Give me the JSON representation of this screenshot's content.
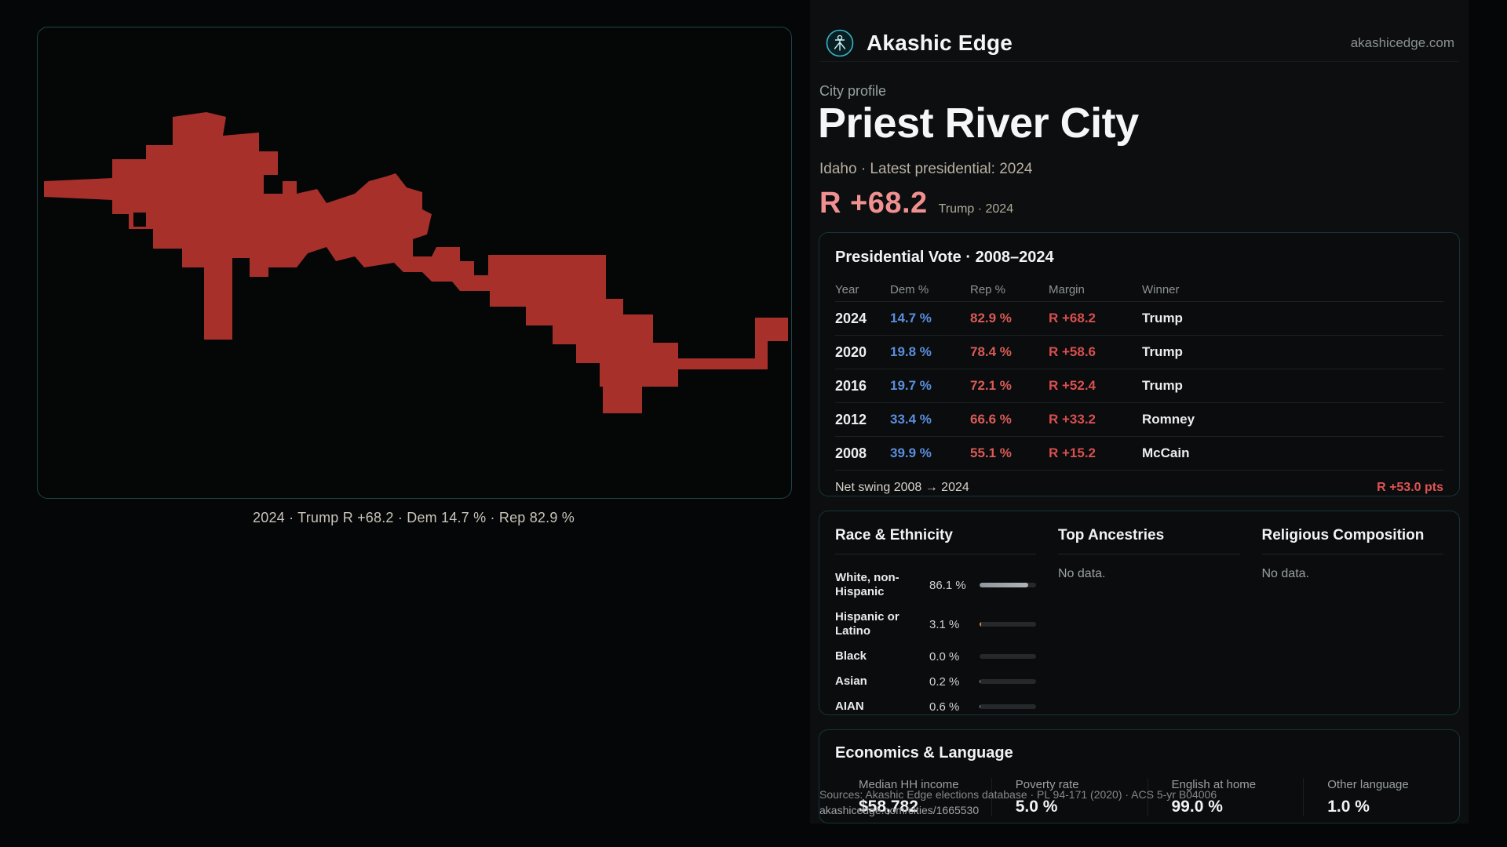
{
  "brand": {
    "name": "Akashic Edge",
    "domain": "akashicedge.com",
    "logo_color": "#3ab5c5"
  },
  "map": {
    "caption": "2024 · Trump R +68.2 · Dem 14.7 % · Rep 82.9 %",
    "fill_color": "#a8302b"
  },
  "profile": {
    "eyebrow": "City profile",
    "title": "Priest River City",
    "subtitle": "Idaho · Latest presidential: 2024",
    "headline_margin": "R +68.2",
    "headline_note": "Trump · 2024"
  },
  "presidential": {
    "title": "Presidential Vote · 2008–2024",
    "columns": [
      "Year",
      "Dem %",
      "Rep %",
      "Margin",
      "Winner"
    ],
    "rows": [
      {
        "year": "2024",
        "dem": "14.7 %",
        "rep": "82.9 %",
        "margin": "R +68.2",
        "winner": "Trump"
      },
      {
        "year": "2020",
        "dem": "19.8 %",
        "rep": "78.4 %",
        "margin": "R +58.6",
        "winner": "Trump"
      },
      {
        "year": "2016",
        "dem": "19.7 %",
        "rep": "72.1 %",
        "margin": "R +52.4",
        "winner": "Trump"
      },
      {
        "year": "2012",
        "dem": "33.4 %",
        "rep": "66.6 %",
        "margin": "R +33.2",
        "winner": "Romney"
      },
      {
        "year": "2008",
        "dem": "39.9 %",
        "rep": "55.1 %",
        "margin": "R +15.2",
        "winner": "McCain"
      }
    ],
    "net_swing_label": "Net swing 2008 → 2024",
    "net_swing_value": "R +53.0 pts"
  },
  "demographics": {
    "race_title": "Race & Ethnicity",
    "race_rows": [
      {
        "label": "White, non-Hispanic",
        "value": "86.1 %",
        "pct": 86.1,
        "color": "#aeb4ba"
      },
      {
        "label": "Hispanic or Latino",
        "value": "3.1 %",
        "pct": 3.1,
        "color": "#d98a35"
      },
      {
        "label": "Black",
        "value": "0.0 %",
        "pct": 0.0,
        "color": "#aeb4ba"
      },
      {
        "label": "Asian",
        "value": "0.2 %",
        "pct": 0.2,
        "color": "#aeb4ba"
      },
      {
        "label": "AIAN",
        "value": "0.6 %",
        "pct": 0.6,
        "color": "#aeb4ba"
      }
    ],
    "ancestries_title": "Top Ancestries",
    "ancestries_empty": "No data.",
    "religion_title": "Religious Composition",
    "religion_empty": "No data."
  },
  "economics": {
    "title": "Economics & Language",
    "stats": [
      {
        "label": "Median HH income",
        "value": "$58,782"
      },
      {
        "label": "Poverty rate",
        "value": "5.0 %"
      },
      {
        "label": "English at home",
        "value": "99.0 %"
      },
      {
        "label": "Other language",
        "value": "1.0 %"
      }
    ]
  },
  "footer": {
    "sources": "Sources: Akashic Edge elections database · PL 94-171 (2020) · ACS 5-yr B04006",
    "permalink": "akashicedge.com/cities/1665530"
  }
}
